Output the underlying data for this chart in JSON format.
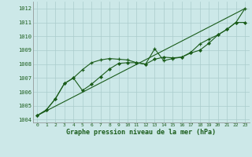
{
  "title": "Graphe pression niveau de la mer (hPa)",
  "bg_color": "#cce8e8",
  "grid_color": "#aacccc",
  "line_color": "#1a5c1a",
  "xlim": [
    -0.5,
    23.5
  ],
  "ylim": [
    1003.8,
    1012.5
  ],
  "yticks": [
    1004,
    1005,
    1006,
    1007,
    1008,
    1009,
    1010,
    1011,
    1012
  ],
  "xticks": [
    0,
    1,
    2,
    3,
    4,
    5,
    6,
    7,
    8,
    9,
    10,
    11,
    12,
    13,
    14,
    15,
    16,
    17,
    18,
    19,
    20,
    21,
    22,
    23
  ],
  "series1_x": [
    0,
    1,
    2,
    3,
    4,
    5,
    6,
    7,
    8,
    9,
    10,
    11,
    12,
    13,
    14,
    15,
    16,
    17,
    18,
    19,
    20,
    21,
    22,
    23
  ],
  "series1_y": [
    1004.3,
    1004.7,
    1005.5,
    1006.6,
    1007.0,
    1007.6,
    1008.1,
    1008.3,
    1008.4,
    1008.35,
    1008.3,
    1008.1,
    1008.0,
    1009.1,
    1008.25,
    1008.4,
    1008.5,
    1008.85,
    1009.45,
    1009.8,
    1010.1,
    1010.5,
    1011.0,
    1012.0
  ],
  "series2_x": [
    0,
    1,
    2,
    3,
    4,
    5,
    6,
    7,
    8,
    9,
    10,
    11,
    12,
    13,
    14,
    15,
    16,
    17,
    18,
    19,
    20,
    21,
    22,
    23
  ],
  "series2_y": [
    1004.3,
    1004.7,
    1005.5,
    1006.6,
    1007.0,
    1006.1,
    1006.55,
    1007.1,
    1007.65,
    1008.05,
    1008.1,
    1008.1,
    1008.0,
    1008.35,
    1008.5,
    1008.45,
    1008.5,
    1008.8,
    1009.0,
    1009.5,
    1010.1,
    1010.5,
    1011.0,
    1011.0
  ],
  "series3_x": [
    0,
    23
  ],
  "series3_y": [
    1004.3,
    1012.0
  ]
}
